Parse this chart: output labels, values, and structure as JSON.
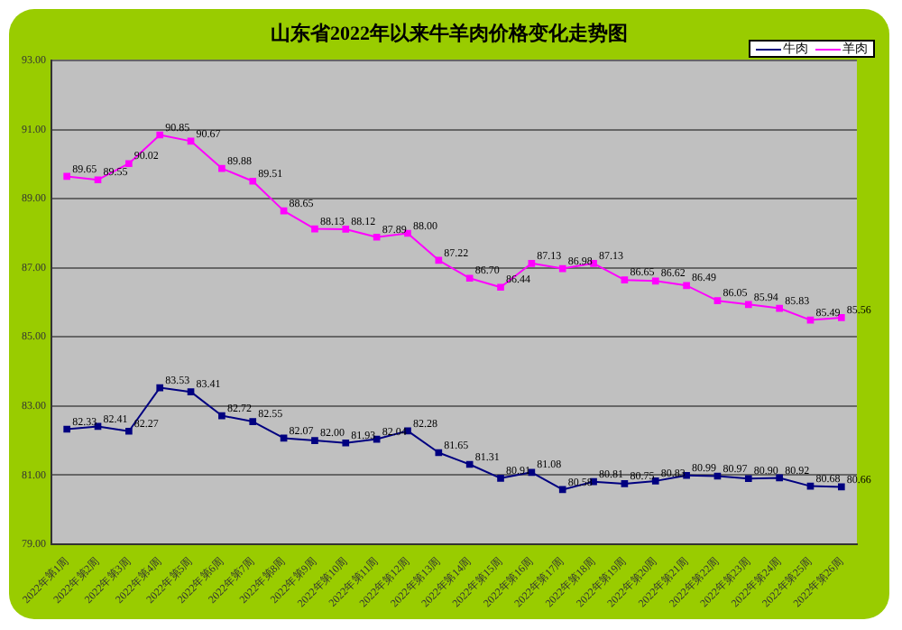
{
  "chart_data": {
    "type": "line",
    "title": "山东省2022年以来牛羊肉价格变化走势图",
    "categories": [
      "2022年第1周",
      "2022年第2周",
      "2022年第3周",
      "2022年第4周",
      "2022年第5周",
      "2022年第6周",
      "2022年第7周",
      "2022年第8周",
      "2022年第9周",
      "2022年第10周",
      "2022年第11周",
      "2022年第12周",
      "2022年第13周",
      "2022年第14周",
      "2022年第15周",
      "2022年第16周",
      "2022年第17周",
      "2022年第18周",
      "2022年第19周",
      "2022年第20周",
      "2022年第21周",
      "2022年第22周",
      "2022年第23周",
      "2022年第24周",
      "2022年第25周",
      "2022年第26周"
    ],
    "series": [
      {
        "name": "牛肉",
        "color": "#000080",
        "values": [
          82.33,
          82.41,
          82.27,
          83.53,
          83.41,
          82.72,
          82.55,
          82.07,
          82.0,
          81.93,
          82.04,
          82.28,
          81.65,
          81.31,
          80.91,
          81.08,
          80.58,
          80.81,
          80.75,
          80.83,
          80.99,
          80.97,
          80.9,
          80.92,
          80.68,
          80.66
        ],
        "value_labels": [
          "82.33",
          "82.41",
          "82.27",
          "83.53",
          "83.41",
          "82.72",
          "82.55",
          "82.07",
          "82.00",
          "81.93",
          "82.04",
          "82.28",
          "81.65",
          "81.31",
          "80.91",
          "81.08",
          "80.58",
          "80.81",
          "80.75",
          "80.83",
          "80.99",
          "80.97",
          "80.90",
          "80.92",
          "80.68",
          "80.66"
        ]
      },
      {
        "name": "羊肉",
        "color": "#ff00ff",
        "values": [
          89.65,
          89.55,
          90.02,
          90.85,
          90.67,
          89.88,
          89.51,
          88.65,
          88.13,
          88.12,
          87.89,
          88.0,
          87.22,
          86.7,
          86.44,
          87.13,
          86.98,
          87.13,
          86.65,
          86.62,
          86.49,
          86.05,
          85.94,
          85.83,
          85.49,
          85.56
        ],
        "value_labels": [
          "89.65",
          "89.55",
          "90.02",
          "90.85",
          "90.67",
          "89.88",
          "89.51",
          "88.65",
          "88.13",
          "88.12",
          "87.89",
          "88.00",
          "87.22",
          "86.70",
          "86.44",
          "87.13",
          "86.98",
          "87.13",
          "86.65",
          "86.62",
          "86.49",
          "86.05",
          "85.94",
          "85.83",
          "85.49",
          "85.56"
        ]
      }
    ],
    "ylim": [
      79,
      93
    ],
    "yticks": [
      {
        "value": 79,
        "label": "79.00"
      },
      {
        "value": 81,
        "label": "81.00"
      },
      {
        "value": 83,
        "label": "83.00"
      },
      {
        "value": 85,
        "label": "85.00"
      },
      {
        "value": 87,
        "label": "87.00"
      },
      {
        "value": 89,
        "label": "89.00"
      },
      {
        "value": 91,
        "label": "91.00"
      },
      {
        "value": 93,
        "label": "93.00"
      }
    ],
    "grid": "y",
    "legend": "top right",
    "marker": "square",
    "line_style": "solid"
  }
}
